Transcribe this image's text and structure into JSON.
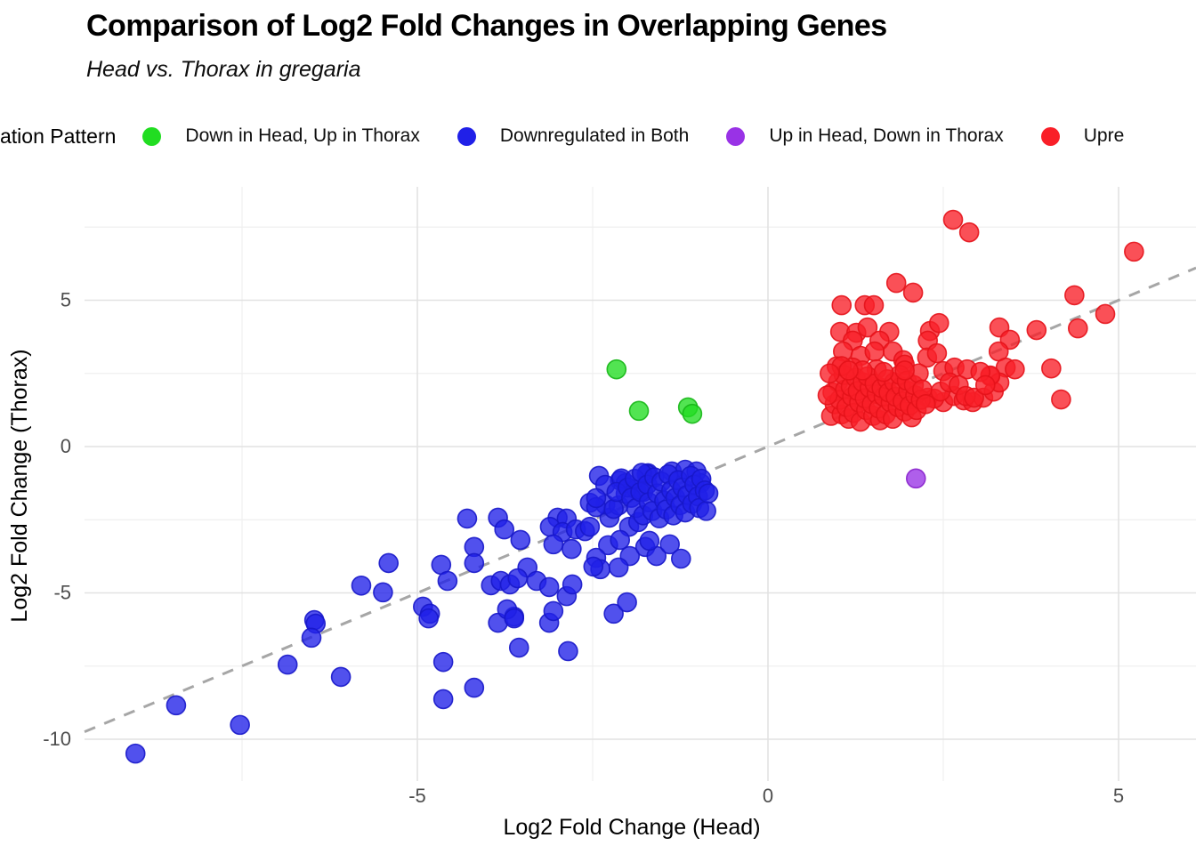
{
  "chart_data": {
    "type": "scatter",
    "title": "Comparison of Log2 Fold Changes in Overlapping Genes",
    "subtitle": "Head vs. Thorax in gregaria",
    "xlabel": "Log2 Fold Change (Head)",
    "ylabel": "Log2 Fold Change (Thorax)",
    "xlim": [
      -9.75,
      6.1
    ],
    "ylim": [
      -11.4,
      8.9
    ],
    "x_ticks": [
      -5,
      0,
      5
    ],
    "y_ticks": [
      5,
      0,
      -5,
      -10
    ],
    "x_minor_gridlines": [
      -7.5,
      -2.5,
      2.5
    ],
    "y_minor_gridlines": [
      7.5,
      2.5,
      -2.5,
      -7.5
    ],
    "grid": "on",
    "tick_label_color": "#4d4d4d",
    "gridline_major_color": "#e2e2e2",
    "gridline_minor_color": "#efefef",
    "identity_line": {
      "slope": 1,
      "intercept": 0,
      "style": "dashed",
      "color": "#a6a6a6"
    },
    "legend": {
      "position": "top",
      "title_visible": "ation Pattern",
      "items": [
        {
          "label": "Down in Head, Up in Thorax",
          "color": "#21dd21"
        },
        {
          "label": "Downregulated in Both",
          "color": "#2020e8"
        },
        {
          "label": "Up in Head, Down in Thorax",
          "color": "#9932e6"
        },
        {
          "label": "Upre",
          "color": "#f91f28"
        }
      ]
    },
    "series": [
      {
        "name": "Down in Head, Up in Thorax",
        "color": "#21dd21",
        "stroke": "#16b616",
        "points": [
          [
            -2.16,
            2.64
          ],
          [
            -1.84,
            1.22
          ],
          [
            -1.14,
            1.34
          ],
          [
            -1.08,
            1.12
          ]
        ]
      },
      {
        "name": "Downregulated in Both",
        "color": "#2020e8",
        "stroke": "#1717c9",
        "points": [
          [
            -9.02,
            -10.49
          ],
          [
            -8.44,
            -8.84
          ],
          [
            -7.53,
            -9.51
          ],
          [
            -6.85,
            -7.45
          ],
          [
            -6.47,
            -5.93
          ],
          [
            -6.45,
            -6.05
          ],
          [
            -6.51,
            -6.53
          ],
          [
            -6.09,
            -7.87
          ],
          [
            -5.49,
            -4.98
          ],
          [
            -5.41,
            -3.98
          ],
          [
            -5.8,
            -4.75
          ],
          [
            -4.92,
            -5.47
          ],
          [
            -4.82,
            -5.71
          ],
          [
            -4.84,
            -5.87
          ],
          [
            -4.63,
            -7.36
          ],
          [
            -4.63,
            -8.63
          ],
          [
            -4.19,
            -8.24
          ],
          [
            -3.85,
            -6.02
          ],
          [
            -3.62,
            -5.81
          ],
          [
            -3.12,
            -6.02
          ],
          [
            -3.55,
            -6.87
          ],
          [
            -2.85,
            -6.99
          ],
          [
            -3.72,
            -5.56
          ],
          [
            -3.06,
            -5.62
          ],
          [
            -2.87,
            -5.11
          ],
          [
            -2.79,
            -4.71
          ],
          [
            -2.2,
            -5.71
          ],
          [
            -2.01,
            -5.32
          ],
          [
            -4.29,
            -2.46
          ],
          [
            -3.85,
            -2.43
          ],
          [
            -3.76,
            -2.83
          ],
          [
            -4.19,
            -3.43
          ],
          [
            -4.19,
            -3.98
          ],
          [
            -4.66,
            -4.04
          ],
          [
            -4.57,
            -4.59
          ],
          [
            -3.95,
            -4.74
          ],
          [
            -3.81,
            -4.59
          ],
          [
            -3.68,
            -4.71
          ],
          [
            -3.62,
            -5.87
          ],
          [
            -3.53,
            -3.19
          ],
          [
            -3.43,
            -4.13
          ],
          [
            -3.3,
            -4.59
          ],
          [
            -3.12,
            -4.8
          ],
          [
            -3.57,
            -4.5
          ],
          [
            -3.0,
            -2.43
          ],
          [
            -2.87,
            -2.46
          ],
          [
            -3.11,
            -2.74
          ],
          [
            -2.93,
            -2.92
          ],
          [
            -2.74,
            -2.83
          ],
          [
            -2.61,
            -2.89
          ],
          [
            -3.06,
            -3.34
          ],
          [
            -2.8,
            -3.5
          ],
          [
            -2.54,
            -2.74
          ],
          [
            -2.26,
            -2.43
          ],
          [
            -1.98,
            -2.74
          ],
          [
            -1.85,
            -2.58
          ],
          [
            -2.28,
            -3.37
          ],
          [
            -2.11,
            -3.19
          ],
          [
            -1.97,
            -3.74
          ],
          [
            -2.45,
            -3.8
          ],
          [
            -2.39,
            -4.19
          ],
          [
            -2.49,
            -4.1
          ],
          [
            -2.13,
            -4.13
          ],
          [
            -1.75,
            -3.43
          ],
          [
            -1.59,
            -3.74
          ],
          [
            -1.4,
            -3.34
          ],
          [
            -1.24,
            -3.83
          ],
          [
            -1.69,
            -3.22
          ],
          [
            -2.41,
            -1.0
          ],
          [
            -2.11,
            -1.16
          ],
          [
            -2.32,
            -1.31
          ],
          [
            -2.03,
            -1.25
          ],
          [
            -1.71,
            -0.91
          ],
          [
            -2.32,
            -1.98
          ],
          [
            -2.54,
            -1.92
          ],
          [
            -2.45,
            -2.07
          ],
          [
            -2.13,
            -2.01
          ],
          [
            -2.2,
            -2.13
          ],
          [
            -2.03,
            -1.61
          ],
          [
            -1.88,
            -1.46
          ],
          [
            -2.09,
            -1.09
          ],
          [
            -1.73,
            -0.94
          ],
          [
            -1.37,
            -0.85
          ],
          [
            -1.18,
            -0.79
          ],
          [
            -1.02,
            -0.85
          ],
          [
            -2.45,
            -1.76
          ],
          [
            -2.16,
            -1.55
          ],
          [
            -1.78,
            -1.55
          ],
          [
            -0.96,
            -1.25
          ],
          [
            -2.0,
            -1.4
          ],
          [
            -1.95,
            -1.75
          ],
          [
            -1.9,
            -1.1
          ],
          [
            -1.88,
            -2.1
          ],
          [
            -1.82,
            -1.55
          ],
          [
            -1.8,
            -0.9
          ],
          [
            -1.78,
            -2.35
          ],
          [
            -1.72,
            -1.3
          ],
          [
            -1.7,
            -1.9
          ],
          [
            -1.65,
            -2.2
          ],
          [
            -1.62,
            -1.05
          ],
          [
            -1.58,
            -1.6
          ],
          [
            -1.55,
            -2.45
          ],
          [
            -1.52,
            -1.2
          ],
          [
            -1.48,
            -1.85
          ],
          [
            -1.45,
            -2.15
          ],
          [
            -1.42,
            -0.95
          ],
          [
            -1.38,
            -1.5
          ],
          [
            -1.35,
            -2.35
          ],
          [
            -1.32,
            -1.75
          ],
          [
            -1.28,
            -1.15
          ],
          [
            -1.25,
            -2.0
          ],
          [
            -1.22,
            -1.4
          ],
          [
            -1.18,
            -2.25
          ],
          [
            -1.15,
            -1.65
          ],
          [
            -1.1,
            -1.0
          ],
          [
            -1.08,
            -1.95
          ],
          [
            -1.05,
            -1.3
          ],
          [
            -1.0,
            -1.7
          ],
          [
            -0.98,
            -2.1
          ],
          [
            -0.95,
            -1.1
          ],
          [
            -0.9,
            -1.5
          ],
          [
            -0.88,
            -2.2
          ],
          [
            -0.85,
            -1.6
          ]
        ]
      },
      {
        "name": "Up in Head, Down in Thorax",
        "color": "#9932e6",
        "stroke": "#8822cc",
        "points": [
          [
            2.11,
            -1.09
          ]
        ]
      },
      {
        "name": "Upre",
        "color": "#f91f28",
        "stroke": "#e41219",
        "points": [
          [
            2.64,
            7.75
          ],
          [
            2.87,
            7.32
          ],
          [
            5.22,
            6.66
          ],
          [
            1.83,
            5.59
          ],
          [
            2.07,
            5.26
          ],
          [
            4.37,
            5.17
          ],
          [
            1.05,
            4.83
          ],
          [
            1.38,
            4.83
          ],
          [
            1.51,
            4.83
          ],
          [
            4.81,
            4.53
          ],
          [
            1.03,
            3.92
          ],
          [
            1.26,
            3.89
          ],
          [
            1.42,
            4.07
          ],
          [
            1.73,
            3.92
          ],
          [
            2.31,
            3.95
          ],
          [
            2.44,
            4.22
          ],
          [
            3.3,
            4.07
          ],
          [
            4.42,
            4.04
          ],
          [
            3.83,
            3.98
          ],
          [
            3.45,
            3.65
          ],
          [
            1.21,
            3.62
          ],
          [
            1.59,
            3.62
          ],
          [
            2.28,
            3.62
          ],
          [
            1.07,
            3.25
          ],
          [
            1.32,
            3.1
          ],
          [
            1.52,
            3.25
          ],
          [
            1.78,
            3.25
          ],
          [
            1.93,
            2.95
          ],
          [
            2.27,
            3.04
          ],
          [
            2.41,
            3.19
          ],
          [
            0.98,
            2.74
          ],
          [
            1.21,
            2.7
          ],
          [
            1.55,
            2.64
          ],
          [
            1.95,
            2.8
          ],
          [
            2.5,
            2.58
          ],
          [
            2.66,
            2.7
          ],
          [
            2.84,
            2.64
          ],
          [
            3.17,
            2.4
          ],
          [
            3.29,
            3.25
          ],
          [
            3.39,
            2.7
          ],
          [
            3.52,
            2.64
          ],
          [
            4.04,
            2.67
          ],
          [
            4.18,
            1.61
          ],
          [
            2.28,
            1.67
          ],
          [
            2.5,
            1.52
          ],
          [
            2.65,
            1.73
          ],
          [
            2.79,
            1.58
          ],
          [
            2.92,
            1.52
          ],
          [
            3.07,
            1.67
          ],
          [
            3.22,
            1.88
          ],
          [
            3.3,
            2.19
          ],
          [
            3.17,
            2.43
          ],
          [
            3.03,
            2.55
          ],
          [
            2.37,
            1.64
          ],
          [
            2.46,
            1.88
          ],
          [
            2.59,
            2.19
          ],
          [
            2.72,
            2.1
          ],
          [
            2.82,
            1.73
          ],
          [
            2.94,
            1.67
          ],
          [
            3.1,
            2.1
          ],
          [
            0.9,
            1.05
          ],
          [
            0.95,
            1.45
          ],
          [
            0.92,
            1.85
          ],
          [
            1.0,
            2.2
          ],
          [
            1.05,
            1.1
          ],
          [
            1.02,
            1.6
          ],
          [
            1.1,
            1.95
          ],
          [
            1.08,
            2.45
          ],
          [
            1.15,
            0.95
          ],
          [
            1.12,
            1.35
          ],
          [
            1.2,
            1.7
          ],
          [
            1.18,
            2.05
          ],
          [
            1.25,
            2.35
          ],
          [
            1.22,
            1.15
          ],
          [
            1.3,
            1.5
          ],
          [
            1.28,
            1.9
          ],
          [
            1.35,
            2.2
          ],
          [
            1.32,
            0.85
          ],
          [
            1.4,
            1.25
          ],
          [
            1.38,
            1.65
          ],
          [
            1.45,
            2.0
          ],
          [
            1.42,
            2.4
          ],
          [
            1.5,
            1.05
          ],
          [
            1.48,
            1.45
          ],
          [
            1.55,
            1.8
          ],
          [
            1.52,
            2.15
          ],
          [
            1.6,
            0.9
          ],
          [
            1.58,
            1.3
          ],
          [
            1.65,
            1.7
          ],
          [
            1.62,
            2.0
          ],
          [
            1.7,
            2.3
          ],
          [
            1.68,
            1.1
          ],
          [
            1.75,
            1.5
          ],
          [
            1.72,
            1.85
          ],
          [
            1.8,
            2.2
          ],
          [
            1.78,
            0.95
          ],
          [
            1.85,
            1.35
          ],
          [
            1.82,
            1.7
          ],
          [
            1.9,
            2.05
          ],
          [
            1.88,
            2.45
          ],
          [
            1.95,
            1.2
          ],
          [
            1.92,
            1.55
          ],
          [
            2.0,
            1.9
          ],
          [
            1.98,
            2.25
          ],
          [
            2.05,
            1.0
          ],
          [
            2.02,
            1.4
          ],
          [
            2.1,
            1.75
          ],
          [
            2.08,
            2.1
          ],
          [
            2.15,
            2.5
          ],
          [
            2.12,
            1.25
          ],
          [
            2.18,
            1.6
          ],
          [
            1.05,
            2.75
          ],
          [
            1.35,
            2.6
          ],
          [
            1.65,
            2.55
          ],
          [
            0.88,
            2.5
          ],
          [
            1.95,
            2.6
          ],
          [
            2.2,
            1.95
          ],
          [
            2.25,
            1.45
          ],
          [
            1.15,
            2.6
          ],
          [
            0.85,
            1.75
          ]
        ]
      }
    ]
  }
}
